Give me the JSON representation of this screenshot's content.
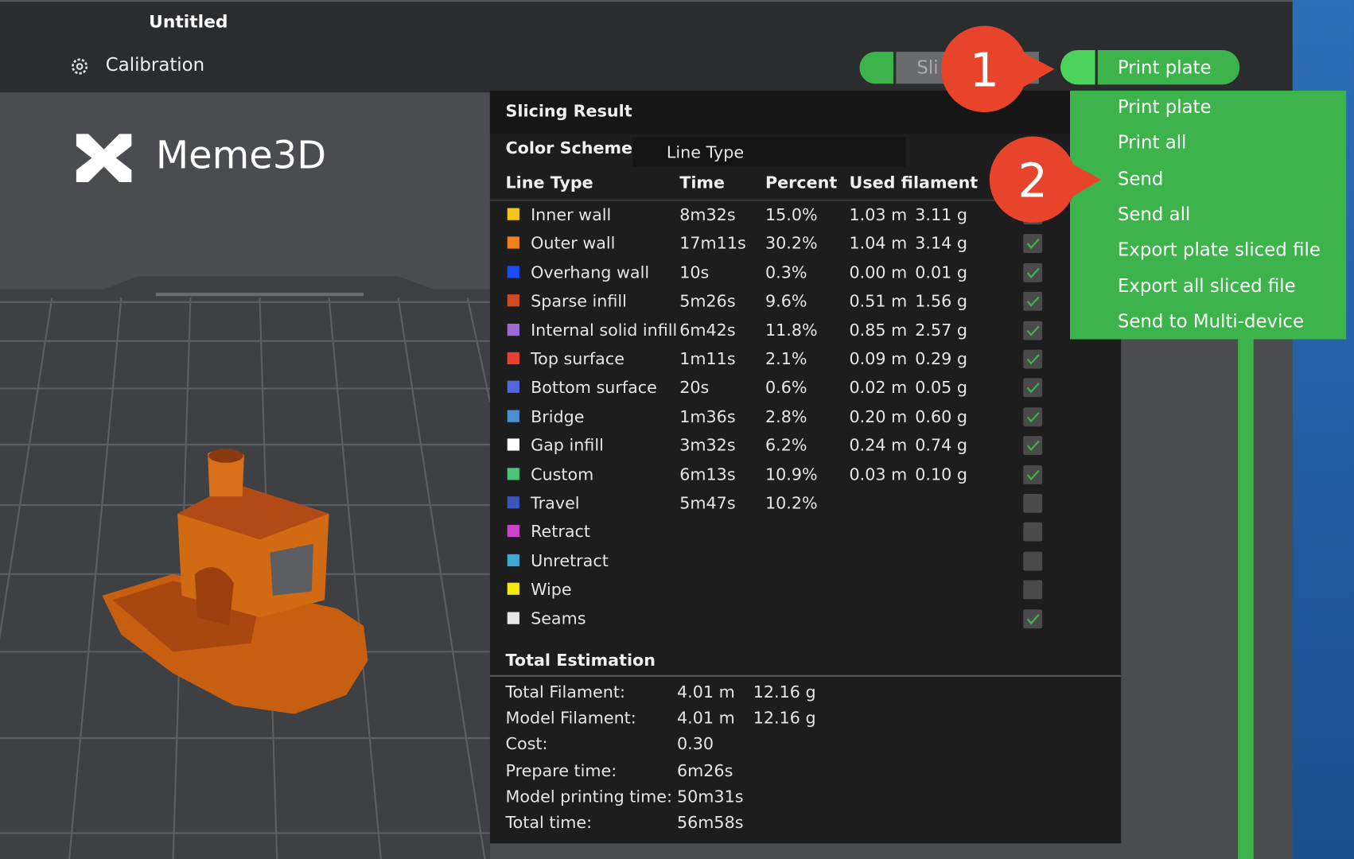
{
  "window": {
    "title": "Untitled"
  },
  "toolbar": {
    "calibration": "Calibration",
    "slice_button": "Sli",
    "print_button": "Print plate"
  },
  "logo": {
    "text": "Meme3D"
  },
  "badges": [
    "1",
    "2"
  ],
  "print_menu": {
    "items": [
      "Print plate",
      "Print all",
      "Send",
      "Send all",
      "Export plate sliced file",
      "Export all sliced file",
      "Send to Multi-device"
    ]
  },
  "slicing_result": {
    "title": "Slicing Result",
    "color_scheme": {
      "label": "Color Scheme",
      "value": "Line Type"
    },
    "columns": [
      "Line Type",
      "Time",
      "Percent",
      "Used filament"
    ],
    "rows": [
      {
        "name": "Inner wall",
        "color": "#f5c518",
        "time": "8m32s",
        "percent": "15.0%",
        "length": "1.03 m",
        "weight": "3.11 g",
        "checked": true
      },
      {
        "name": "Outer wall",
        "color": "#f07f1c",
        "time": "17m11s",
        "percent": "30.2%",
        "length": "1.04 m",
        "weight": "3.14 g",
        "checked": true
      },
      {
        "name": "Overhang wall",
        "color": "#1a4cf0",
        "time": "10s",
        "percent": "0.3%",
        "length": "0.00 m",
        "weight": "0.01 g",
        "checked": true
      },
      {
        "name": "Sparse infill",
        "color": "#d04a24",
        "time": "5m26s",
        "percent": "9.6%",
        "length": "0.51 m",
        "weight": "1.56 g",
        "checked": true
      },
      {
        "name": "Internal solid infill",
        "color": "#9a6bd6",
        "time": "6m42s",
        "percent": "11.8%",
        "length": "0.85 m",
        "weight": "2.57 g",
        "checked": true
      },
      {
        "name": "Top surface",
        "color": "#e8412f",
        "time": "1m11s",
        "percent": "2.1%",
        "length": "0.09 m",
        "weight": "0.29 g",
        "checked": true
      },
      {
        "name": "Bottom surface",
        "color": "#5368e0",
        "time": "20s",
        "percent": "0.6%",
        "length": "0.02 m",
        "weight": "0.05 g",
        "checked": true
      },
      {
        "name": "Bridge",
        "color": "#4a8fd1",
        "time": "1m36s",
        "percent": "2.8%",
        "length": "0.20 m",
        "weight": "0.60 g",
        "checked": true
      },
      {
        "name": "Gap infill",
        "color": "#ffffff",
        "time": "3m32s",
        "percent": "6.2%",
        "length": "0.24 m",
        "weight": "0.74 g",
        "checked": true
      },
      {
        "name": "Custom",
        "color": "#4fc27a",
        "time": "6m13s",
        "percent": "10.9%",
        "length": "0.03 m",
        "weight": "0.10 g",
        "checked": true
      },
      {
        "name": "Travel",
        "color": "#3a56b8",
        "time": "5m47s",
        "percent": "10.2%",
        "checked": false
      },
      {
        "name": "Retract",
        "color": "#cc44cc",
        "checked": false
      },
      {
        "name": "Unretract",
        "color": "#3aaad6",
        "checked": false
      },
      {
        "name": "Wipe",
        "color": "#f5e90c",
        "checked": false
      },
      {
        "name": "Seams",
        "color": "#e6e6e6",
        "checked": true
      }
    ]
  },
  "total_estimation": {
    "title": "Total Estimation",
    "rows": [
      {
        "label": "Total Filament:",
        "values": [
          "4.01 m",
          "12.16 g"
        ]
      },
      {
        "label": "Model Filament:",
        "values": [
          "4.01 m",
          "12.16 g"
        ]
      },
      {
        "label": "Cost:",
        "values": [
          "0.30"
        ]
      },
      {
        "label": "Prepare time:",
        "values": [
          "6m26s"
        ]
      },
      {
        "label": "Model printing time:",
        "values": [
          "50m31s"
        ]
      },
      {
        "label": "Total time:",
        "values": [
          "56m58s"
        ]
      }
    ]
  }
}
